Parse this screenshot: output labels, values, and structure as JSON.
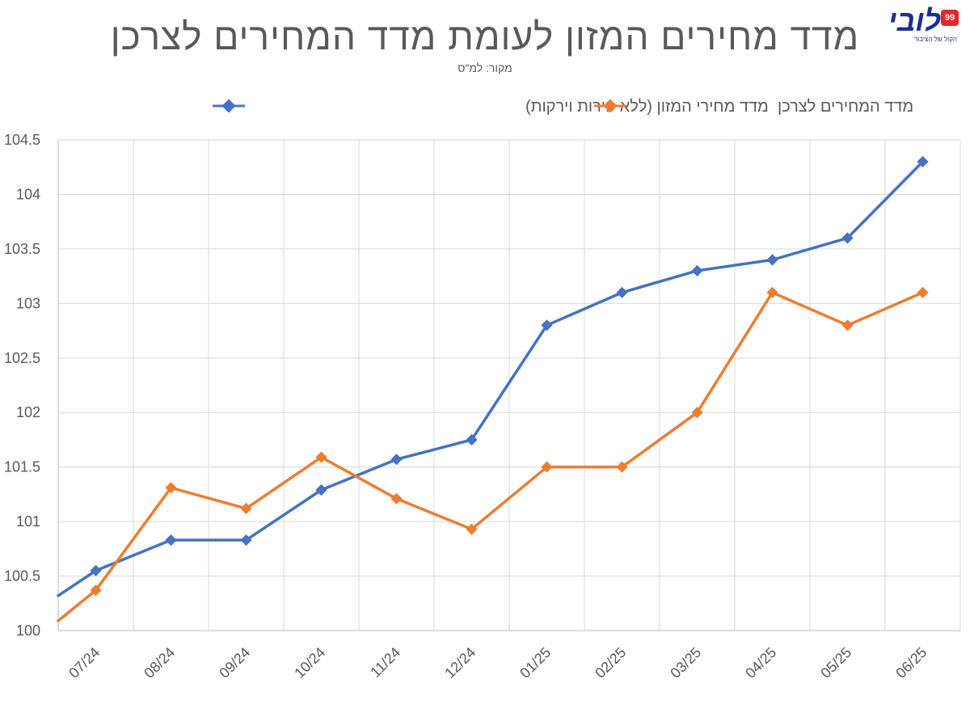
{
  "header": {
    "title": "מדד מחירים המזון לעומת מדד המחירים לצרכן",
    "source": "מקור: למ\"ס"
  },
  "logo": {
    "text": "לובי",
    "badge": "99",
    "subtitle": "הקול של הציבור"
  },
  "chart_data": {
    "type": "line",
    "title": "מדד מחירים המזון לעומת מדד המחירים לצרכן",
    "subtitle": "מקור: למ\"ס",
    "xlabel": "",
    "ylabel": "",
    "ylim": [
      100,
      104.5
    ],
    "ytick_step": 0.5,
    "yticks": [
      "100",
      "100.5",
      "101",
      "101.5",
      "102",
      "102.5",
      "103",
      "103.5",
      "104",
      "104.5"
    ],
    "grid": true,
    "legend_position": "top",
    "categories": [
      "07/24",
      "08/24",
      "09/24",
      "10/24",
      "11/24",
      "12/24",
      "01/25",
      "02/25",
      "03/25",
      "04/25",
      "05/25",
      "06/25"
    ],
    "series": [
      {
        "name": "מדד מחירי המזון (ללא פירות וירקות)",
        "color": "#4472c4",
        "start_value": 100.32,
        "values": [
          100.55,
          100.83,
          100.83,
          101.29,
          101.57,
          101.75,
          102.8,
          103.1,
          103.3,
          103.4,
          103.6,
          104.3
        ]
      },
      {
        "name": "מדד המחירים לצרכן",
        "color": "#ed7d31",
        "start_value": 100.09,
        "values": [
          100.37,
          101.31,
          101.12,
          101.59,
          101.21,
          100.93,
          101.5,
          101.5,
          102.0,
          103.1,
          102.8,
          103.1
        ]
      }
    ]
  }
}
